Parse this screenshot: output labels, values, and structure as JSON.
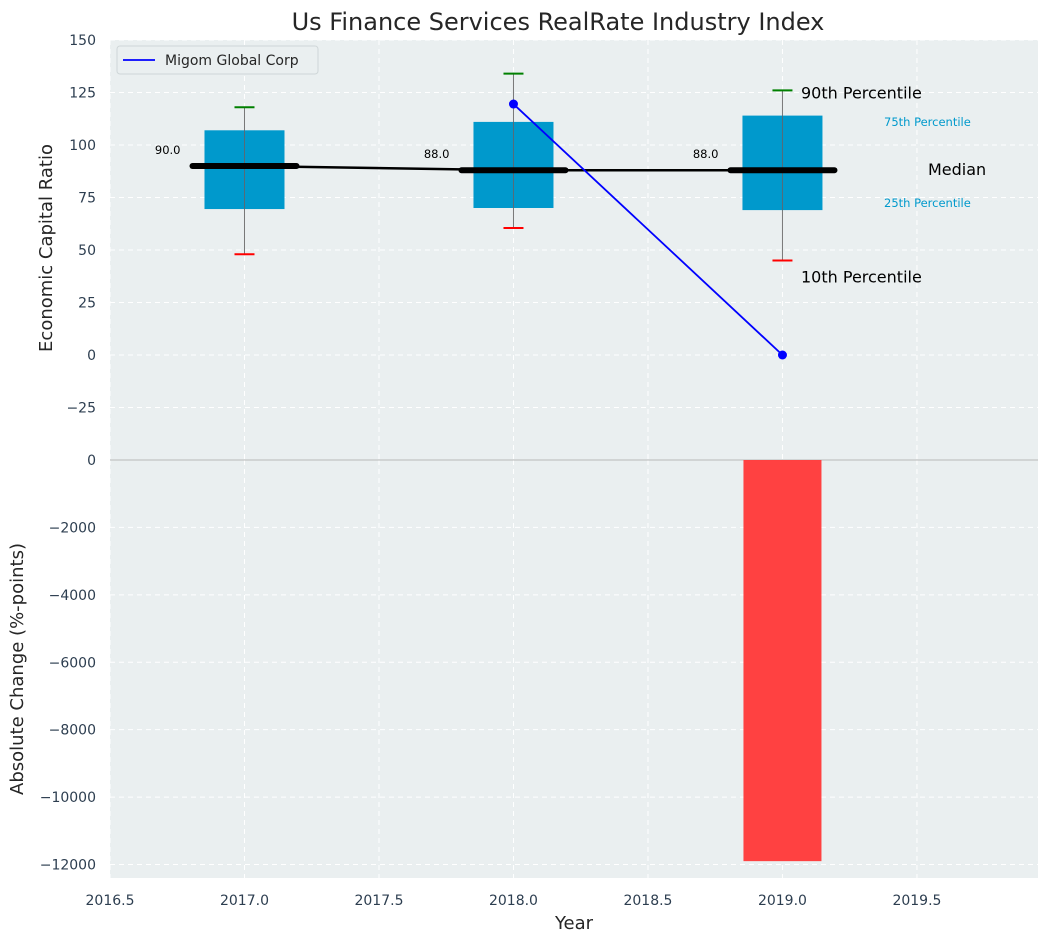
{
  "chart_data": {
    "type": "box-and-bar",
    "title": "Us Finance Services RealRate Industry Index",
    "xlabel": "Year",
    "x_ticks": [
      "2016.5",
      "2017.0",
      "2017.5",
      "2018.0",
      "2018.5",
      "2019.0",
      "2019.5"
    ],
    "xlim": [
      2016.5,
      2019.95
    ],
    "top_panel": {
      "ylabel": "Economic Capital Ratio",
      "ylim": [
        -50,
        150
      ],
      "y_ticks": [
        "150",
        "125",
        "100",
        "75",
        "50",
        "25",
        "0",
        "−25"
      ],
      "legend": {
        "label": "Migom Global Corp",
        "placement": "top-left"
      },
      "percentiles": {
        "years": [
          2017,
          2018,
          2019
        ],
        "p10": [
          48,
          60.5,
          45
        ],
        "p25": [
          69.5,
          70,
          69
        ],
        "median": [
          90,
          88,
          88
        ],
        "p75": [
          107,
          111,
          114
        ],
        "p90": [
          118,
          134,
          126
        ]
      },
      "median_labels": [
        "90.0",
        "88.0",
        "88.0"
      ],
      "company_series": {
        "name": "Migom Global Corp",
        "x": [
          2018,
          2019
        ],
        "y": [
          119.5,
          0
        ]
      },
      "annotations": {
        "p90": "90th Percentile",
        "p75": "75th Percentile",
        "median": "Median",
        "p25": "25th Percentile",
        "p10": "10th Percentile"
      }
    },
    "bottom_panel": {
      "ylabel": "Absolute Change (%-points)",
      "ylim": [
        -12400,
        0
      ],
      "y_ticks": [
        "0",
        "−2000",
        "−4000",
        "−6000",
        "−8000",
        "−10000",
        "−12000"
      ],
      "bars": [
        {
          "x": 2019,
          "value": -11900
        }
      ]
    },
    "colors": {
      "panel_bg": "#eaeff0",
      "box": "#0099cc",
      "median_line": "#000000",
      "company_line": "#0000ff",
      "p90_cap": "#008000",
      "p10_cap": "#ff0000",
      "bar": "#ff3b3b",
      "annotation_small": "#0099cc",
      "tick_text": "#2d3e50"
    }
  }
}
